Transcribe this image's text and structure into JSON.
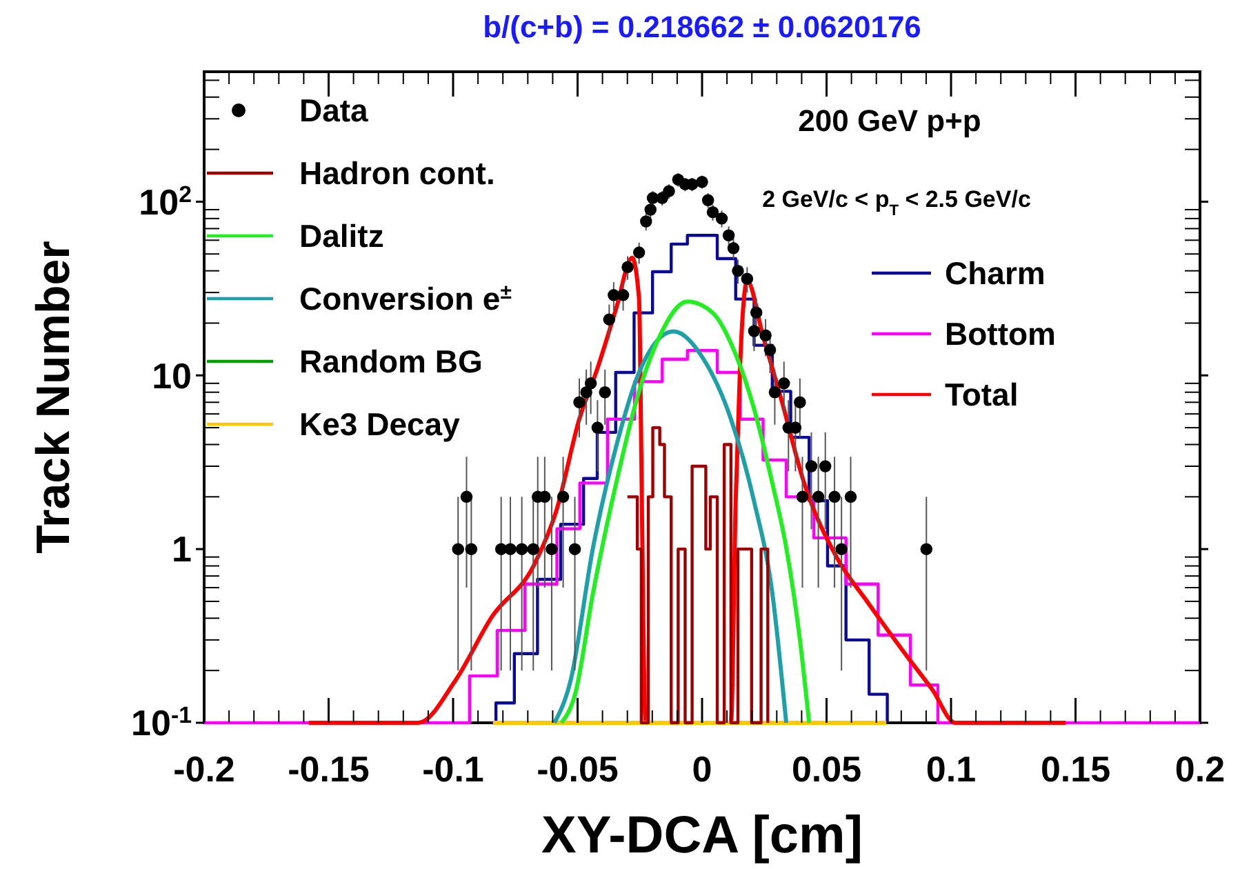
{
  "chart_data": {
    "type": "line",
    "title": "b/(c+b) = 0.218662 ± 0.0620176",
    "xlabel": "XY-DCA [cm]",
    "ylabel": "Track Number",
    "annotations": [
      "200 GeV  p+p",
      "2 GeV/c < p$_{T}$ < 2.5 GeV/c"
    ],
    "log": "y",
    "legend": "top left",
    "grid": false,
    "xlim": [
      -0.2,
      0.2
    ],
    "xticks": [
      -0.2,
      -0.15,
      -0.1,
      -0.05,
      0,
      0.05,
      0.1,
      0.15,
      0.2
    ],
    "ylim": [
      0.1,
      560
    ],
    "yticks": [
      {
        "value": 0.1,
        "label": "10$^{-1}$"
      },
      1,
      10,
      {
        "value": 100,
        "label": "10$^{2}$"
      }
    ],
    "series": [
      {
        "name": "Data",
        "type": "scatter",
        "marker": "circle",
        "color": "#000000",
        "x": [
          -0.098,
          -0.0946,
          -0.0927,
          -0.0807,
          -0.077,
          -0.0724,
          -0.0678,
          -0.066,
          -0.0632,
          -0.0604,
          -0.0558,
          -0.0511,
          -0.0493,
          -0.0465,
          -0.0447,
          -0.042,
          -0.039,
          -0.0373,
          -0.0355,
          -0.0317,
          -0.0299,
          -0.0253,
          -0.0225,
          -0.0207,
          -0.0198,
          -0.016,
          -0.0133,
          -0.0096,
          -0.0068,
          -0.004,
          0,
          0.0024,
          0.0043,
          0.0079,
          0.0107,
          0.0126,
          0.0144,
          0.0181,
          0.0209,
          0.0218,
          0.0255,
          0.0273,
          0.0292,
          0.0329,
          0.0347,
          0.0375,
          0.0393,
          0.0403,
          0.0439,
          0.0467,
          0.0495,
          0.0532,
          0.056,
          0.0597,
          0.0901
        ],
        "values": [
          1,
          2,
          1,
          1,
          1,
          1,
          1,
          2,
          2,
          1,
          2,
          1,
          7,
          8,
          9,
          5,
          8,
          21,
          29,
          29,
          42,
          51,
          77,
          90,
          105,
          105,
          115,
          134,
          126,
          126,
          130,
          102,
          87,
          80,
          64,
          54,
          40,
          36,
          18,
          23,
          17,
          14,
          8,
          9,
          5,
          5,
          7,
          2,
          3,
          2,
          3,
          2,
          1,
          2,
          1
        ],
        "errors": [
          [
            0.2,
            2
          ],
          1.4,
          [
            0.2,
            2
          ],
          [
            0.2,
            2
          ],
          [
            0.2,
            2
          ],
          [
            0.2,
            2
          ],
          [
            0.2,
            2
          ],
          1.4,
          1.4,
          [
            0.2,
            2
          ],
          1.4,
          [
            0.2,
            2
          ],
          2.6,
          2.8,
          3,
          2.2,
          2.8,
          4.6,
          5.4,
          5.4,
          6.5,
          7.1,
          8.8,
          9.5,
          10,
          10,
          11,
          12,
          11,
          11,
          11,
          10,
          9.3,
          8.9,
          8,
          7.3,
          6.3,
          6,
          4.2,
          4.8,
          4.1,
          3.7,
          2.8,
          3,
          2.2,
          2.2,
          2.6,
          1.4,
          1.7,
          1.4,
          1.7,
          1.4,
          [
            0.2,
            2
          ],
          1.4,
          [
            0.2,
            2
          ]
        ]
      },
      {
        "name": "Hadron cont.",
        "type": "step",
        "color": "#a00000",
        "x": [
          -0.03,
          -0.026,
          -0.0244,
          -0.0216,
          -0.0198,
          -0.017,
          -0.0151,
          -0.0124,
          -0.0096,
          -0.0068,
          -0.004,
          0.0015,
          0.0033,
          0.0061,
          0.0089,
          0.0116,
          0.0144,
          0.0199,
          0.0237,
          0.0264
        ],
        "values": [
          2,
          1,
          0.1,
          2,
          5,
          4,
          2,
          0.1,
          1,
          0.1,
          3,
          1,
          2,
          0.1,
          4,
          0.1,
          1,
          0.1,
          1,
          0.1
        ]
      },
      {
        "name": "Dalitz",
        "color": "#22ee22",
        "x": [
          -0.0565,
          -0.051,
          -0.0438,
          -0.0345,
          -0.0253,
          -0.0179,
          -0.0059,
          0.0043,
          0.0135,
          0.0209,
          0.0282,
          0.0338,
          0.0393,
          0.043
        ],
        "values": [
          0.1,
          0.146,
          0.56,
          2.4,
          8.1,
          15.8,
          26.6,
          22.9,
          13.2,
          6.4,
          2.4,
          1.02,
          0.3,
          0.1
        ]
      },
      {
        "name": "Conversion e$^{±}$",
        "color": "#1fa0a8",
        "x": [
          -0.0593,
          -0.0528,
          -0.0438,
          -0.0345,
          -0.0253,
          -0.0115,
          0.0006,
          0.0116,
          0.0209,
          0.0282,
          0.0338
        ],
        "values": [
          0.1,
          0.175,
          1.02,
          3.9,
          10.4,
          17.9,
          12.4,
          5.6,
          1.88,
          0.56,
          0.1
        ]
      },
      {
        "name": "Random BG",
        "color": "#00a000"
      },
      {
        "name": "Ke3 Decay",
        "color": "#ffc800",
        "x": [
          -0.084,
          0.074
        ],
        "values": [
          0.1,
          0.1
        ]
      },
      {
        "name": "Charm",
        "type": "step",
        "color": "#0a0a96",
        "x": [
          -0.0845,
          -0.0828,
          -0.0754,
          -0.0661,
          -0.0568,
          -0.0476,
          -0.0421,
          -0.0347,
          -0.0273,
          -0.0199,
          -0.0124,
          -0.0059,
          0.0061,
          0.0135,
          0.0209,
          0.0282,
          0.0356,
          0.043,
          0.0504,
          0.0578,
          0.0671,
          0.0744
        ],
        "values": [
          0.1,
          0.13,
          0.25,
          0.67,
          1.39,
          2.55,
          4.7,
          10.4,
          22.9,
          39.5,
          57,
          64,
          47,
          27.5,
          14.9,
          8.1,
          4.4,
          1.9,
          0.8,
          0.3,
          0.146,
          0.1
        ]
      },
      {
        "name": "Bottom",
        "type": "step",
        "color": "#ff00ff",
        "x": [
          -0.2,
          -0.1075,
          -0.0934,
          -0.0823,
          -0.0712,
          -0.0583,
          -0.0491,
          -0.038,
          -0.0271,
          -0.016,
          -0.0059,
          0.0061,
          0.0153,
          0.0245,
          0.0338,
          0.0449,
          0.0578,
          0.0707,
          0.0837,
          0.0947,
          0.2
        ],
        "values": [
          0.1,
          0.1,
          0.186,
          0.34,
          0.63,
          1.31,
          2.4,
          5.6,
          9.2,
          12.4,
          13.9,
          10.4,
          5.6,
          3.26,
          2.0,
          1.16,
          0.63,
          0.32,
          0.165,
          0.1,
          0.1
        ]
      },
      {
        "name": "Total",
        "color": "#ff0000",
        "x": [
          -0.158,
          -0.114,
          -0.0991,
          -0.0843,
          -0.0677,
          -0.0585,
          -0.0493,
          -0.042,
          -0.0345,
          -0.0281,
          -0.0253,
          -0.0244,
          -0.0235,
          -0.0227,
          0.0116,
          0.0135,
          0.0153,
          0.0181,
          0.0245,
          0.0319,
          0.041,
          0.054,
          0.0667,
          0.0815,
          0.0925,
          0.1017,
          0.146
        ],
        "values": [
          0.1,
          0.1,
          0.175,
          0.41,
          0.8,
          1.67,
          5.6,
          11,
          24.3,
          47.5,
          27.5,
          3.5,
          0.3,
          0.1,
          0.1,
          1.88,
          11.7,
          35,
          16.8,
          7.2,
          2.4,
          0.9,
          0.49,
          0.25,
          0.155,
          0.1,
          0.1
        ]
      }
    ]
  }
}
